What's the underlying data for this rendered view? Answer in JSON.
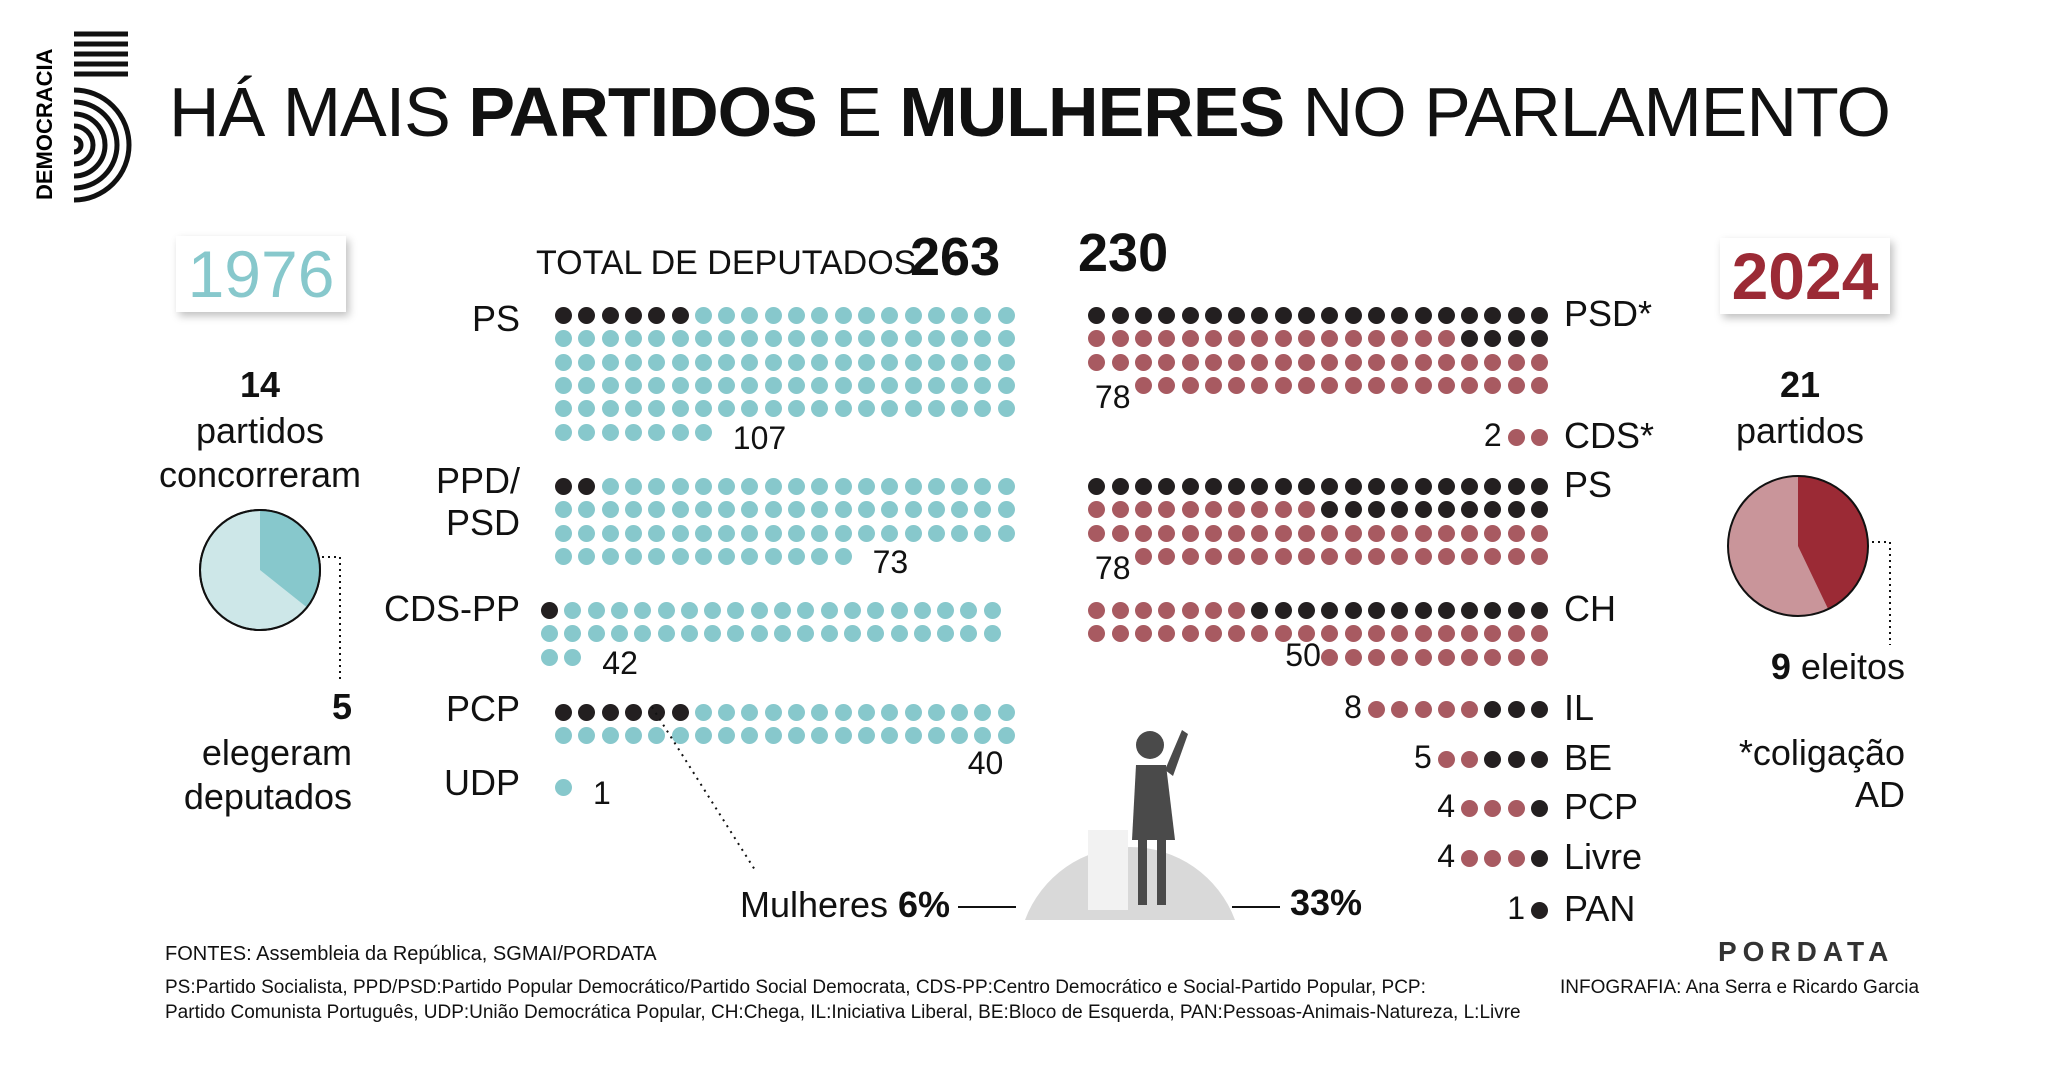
{
  "title": {
    "part1": "HÁ MAIS ",
    "part2": "PARTIDOS",
    "part3": " E ",
    "part4": "MULHERES",
    "part5": " NO PARLAMENTO"
  },
  "logo": {
    "text": "DEMOCRACIA"
  },
  "colors": {
    "teal": "#87c8cc",
    "black": "#231f20",
    "red": "#a85a61",
    "y1976": "#87c8cc",
    "y2024": "#9b2a35"
  },
  "left": {
    "year": "1976",
    "parties_count": "14",
    "parties_text1": "partidos",
    "parties_text2": "concorreram",
    "elected_count": "5",
    "elected_text1": "elegeram",
    "elected_text2": "deputados",
    "pie_elected_fraction": 0.357
  },
  "right": {
    "year": "2024",
    "parties_count": "21",
    "parties_text": "partidos",
    "elected_count": "9",
    "elected_text": " eleitos",
    "pie_elected_fraction": 0.429,
    "note1": "*coligação",
    "note2": "AD"
  },
  "totals": {
    "label": "TOTAL DE DEPUTADOS",
    "total_1976": "263",
    "total_2024": "230"
  },
  "women": {
    "label": "Mulheres",
    "pct_1976": "6%",
    "pct_2024": "33%"
  },
  "chart_data": [
    {
      "type": "dot-matrix",
      "year": "1976",
      "legend": "black dots = women deputies",
      "parties": [
        {
          "name": "PS",
          "seats": 107,
          "women": 6
        },
        {
          "name": "PPD/\nPSD",
          "seats": 73,
          "women": 2
        },
        {
          "name": "CDS-PP",
          "seats": 42,
          "women": 1
        },
        {
          "name": "PCP",
          "seats": 40,
          "women": 6
        },
        {
          "name": "UDP",
          "seats": 1,
          "women": 0
        }
      ]
    },
    {
      "type": "dot-matrix",
      "year": "2024",
      "parties": [
        {
          "name": "PSD*",
          "seats": 78,
          "women": 24
        },
        {
          "name": "CDS*",
          "seats": 2,
          "women": 0
        },
        {
          "name": "PS",
          "seats": 78,
          "women": 30
        },
        {
          "name": "CH",
          "seats": 50,
          "women": 13
        },
        {
          "name": "IL",
          "seats": 8,
          "women": 3
        },
        {
          "name": "BE",
          "seats": 5,
          "women": 3
        },
        {
          "name": "PCP",
          "seats": 4,
          "women": 1
        },
        {
          "name": "Livre",
          "seats": 4,
          "women": 1
        },
        {
          "name": "PAN",
          "seats": 1,
          "women": 1
        }
      ]
    }
  ],
  "footer": {
    "sources": "FONTES: Assembleia da República, SGMAI/PORDATA",
    "notes1": "PS:Partido Socialista, PPD/PSD:Partido Popular Democrático/Partido Social Democrata, CDS-PP:Centro Democrático e Social-Partido Popular, PCP:",
    "notes2": "Partido Comunista Português, UDP:União Democrática Popular, CH:Chega, IL:Iniciativa Liberal, BE:Bloco de Esquerda, PAN:Pessoas-Animais-Natureza, L:Livre",
    "brand": "PORDATA",
    "credits": "INFOGRAFIA: Ana Serra e Ricardo Garcia"
  }
}
